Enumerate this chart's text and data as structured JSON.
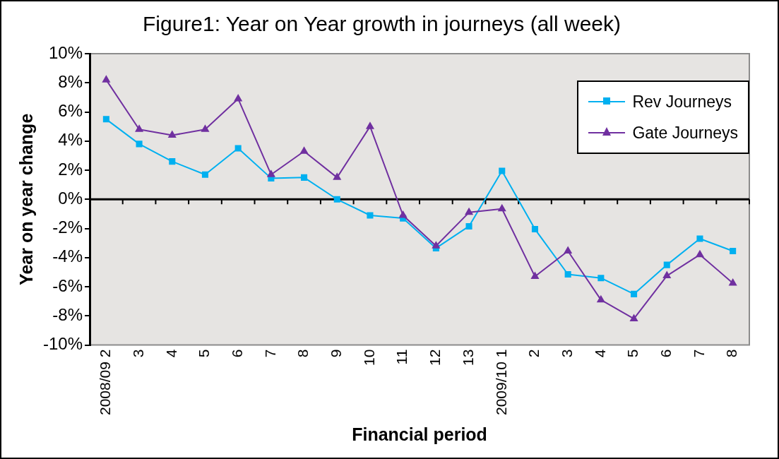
{
  "chart_data": {
    "type": "line",
    "title": "Figure1: Year on Year growth in journeys (all week)",
    "xlabel": "Financial period",
    "ylabel": "Year on year change",
    "categories": [
      "2008/09 2",
      "3",
      "4",
      "5",
      "6",
      "7",
      "8",
      "9",
      "10",
      "11",
      "12",
      "13",
      "2009/10 1",
      "2",
      "3",
      "4",
      "5",
      "6",
      "7",
      "8"
    ],
    "series": [
      {
        "name": "Rev Journeys",
        "color": "#00b0f0",
        "marker": "square",
        "values": [
          5.5,
          3.8,
          2.6,
          1.7,
          3.5,
          1.45,
          1.5,
          0,
          -1.1,
          -1.3,
          -3.35,
          -1.85,
          1.95,
          -2.05,
          -5.15,
          -5.4,
          -6.5,
          -4.5,
          -2.7,
          -3.55
        ]
      },
      {
        "name": "Gate Journeys",
        "color": "#7030a0",
        "marker": "triangle",
        "values": [
          8.2,
          4.8,
          4.4,
          4.8,
          6.9,
          1.7,
          3.3,
          1.5,
          5.0,
          -1.1,
          -3.2,
          -0.9,
          -0.65,
          -5.3,
          -3.55,
          -6.9,
          -8.2,
          -5.25,
          -3.8,
          -5.75
        ]
      }
    ],
    "ylim": [
      -10,
      10
    ],
    "yticks": [
      {
        "value": -10,
        "label": "-10%"
      },
      {
        "value": -8,
        "label": "-8%"
      },
      {
        "value": -6,
        "label": "-6%"
      },
      {
        "value": -4,
        "label": "-4%"
      },
      {
        "value": -2,
        "label": "-2%"
      },
      {
        "value": 0,
        "label": "0%"
      },
      {
        "value": 2,
        "label": "2%"
      },
      {
        "value": 4,
        "label": "4%"
      },
      {
        "value": 6,
        "label": "6%"
      },
      {
        "value": 8,
        "label": "8%"
      },
      {
        "value": 10,
        "label": "10%"
      }
    ],
    "ref_lines": [
      {
        "axis": "y",
        "value": 0,
        "color": "#000000"
      }
    ],
    "grid": false,
    "legend": "top right",
    "line_style": "solid"
  }
}
